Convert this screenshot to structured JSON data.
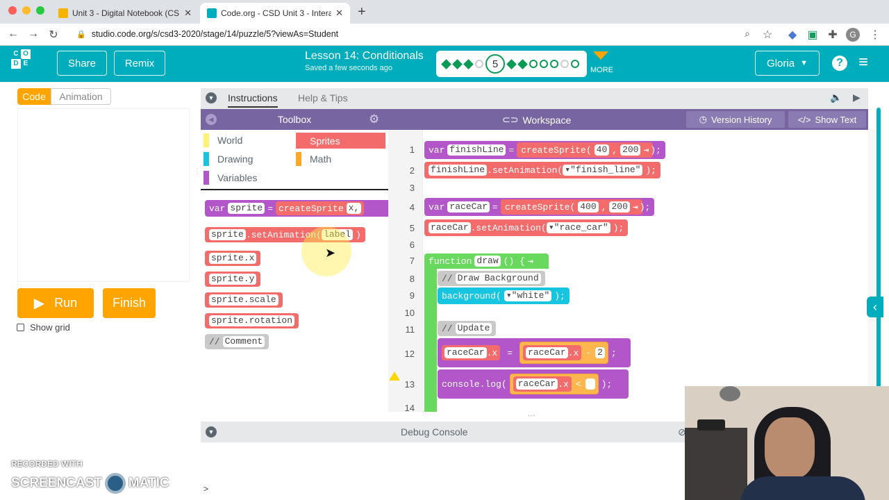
{
  "browser": {
    "tabs": [
      {
        "title": "Unit 3 - Digital Notebook (CSD",
        "active": false
      },
      {
        "title": "Code.org - CSD Unit 3 - Intera",
        "active": true
      }
    ],
    "new_tab": "+",
    "url": "studio.code.org/s/csd3-2020/stage/14/puzzle/5?viewAs=Student",
    "profile_initial": "G"
  },
  "header": {
    "logo_letters": [
      "C",
      "O",
      "D",
      "E"
    ],
    "share_label": "Share",
    "remix_label": "Remix",
    "lesson_title": "Lesson 14: Conditionals",
    "saved_status": "Saved a few seconds ago",
    "current_level": "5",
    "more_label": "MORE",
    "user_name": "Gloria"
  },
  "left_panel": {
    "code_tab": "Code",
    "animation_tab": "Animation",
    "run_label": "Run",
    "finish_label": "Finish",
    "show_grid_label": "Show grid"
  },
  "instructions": {
    "tab_instructions": "Instructions",
    "tab_help": "Help & Tips"
  },
  "toolbox": {
    "title": "Toolbox",
    "categories": [
      {
        "label": "World",
        "color": "#fff176"
      },
      {
        "label": "Sprites",
        "color": "#f46b6b"
      },
      {
        "label": "Drawing",
        "color": "#18c5e1"
      },
      {
        "label": "Math",
        "color": "#ffa726"
      },
      {
        "label": "Variables",
        "color": "#b356c9"
      }
    ],
    "blocks": {
      "create_var": "var",
      "create_name": "sprite",
      "create_eq": "=",
      "create_fn": "createSprite",
      "create_arg": "x,",
      "set_anim_obj": "sprite",
      "set_anim_fn": ".setAnimation(",
      "set_anim_arg": "label",
      "set_anim_close": ")",
      "sx": "sprite.x",
      "sy": "sprite.y",
      "sscale": "sprite.scale",
      "srot": "sprite.rotation",
      "comment_slashes": "//",
      "comment_text": "Comment"
    }
  },
  "workspace": {
    "title": "Workspace",
    "version_history": "Version History",
    "show_text": "Show Text",
    "line_numbers": [
      "1",
      "2",
      "3",
      "4",
      "5",
      "6",
      "7",
      "8",
      "9",
      "10",
      "11",
      "12",
      "13",
      "14"
    ],
    "code": {
      "l1_var": "var",
      "l1_name": "finishLine",
      "l1_eq": "=",
      "l1_fn": "createSprite(",
      "l1_a": "40",
      "l1_comma": ",",
      "l1_b": "200",
      "l1_end": ");",
      "l2_obj": "finishLine",
      "l2_fn": ".setAnimation(",
      "l2_arg": "\"finish_line\"",
      "l2_end": ");",
      "l4_var": "var",
      "l4_name": "raceCar",
      "l4_eq": "=",
      "l4_fn": "createSprite(",
      "l4_a": "400",
      "l4_comma": ",",
      "l4_b": "200",
      "l4_end": ");",
      "l5_obj": "raceCar",
      "l5_fn": ".setAnimation(",
      "l5_arg": "\"race_car\"",
      "l5_end": ");",
      "l7_fn": "function",
      "l7_name": "draw",
      "l7_paren": "() {",
      "l8_slashes": "//",
      "l8_text": "Draw Background",
      "l9_fn": "background(",
      "l9_arg": "\"white\"",
      "l9_end": ");",
      "l11_slashes": "//",
      "l11_text": "Update",
      "l12_obj": "raceCar",
      "l12_prop": ".x",
      "l12_eq": "=",
      "l12_robj": "raceCar",
      "l12_rprop": ".x",
      "l12_op": "-",
      "l12_num": "2",
      "l12_end": ";",
      "l13_fn": "console.log(",
      "l13_obj": "raceCar",
      "l13_prop": ".x",
      "l13_op": "<",
      "l13_end": ");"
    }
  },
  "debug": {
    "title": "Debug Console",
    "prompt": ">"
  },
  "watermark": {
    "line1": "RECORDED WITH",
    "line2a": "SCREENCAST",
    "line2b": "MATIC"
  }
}
